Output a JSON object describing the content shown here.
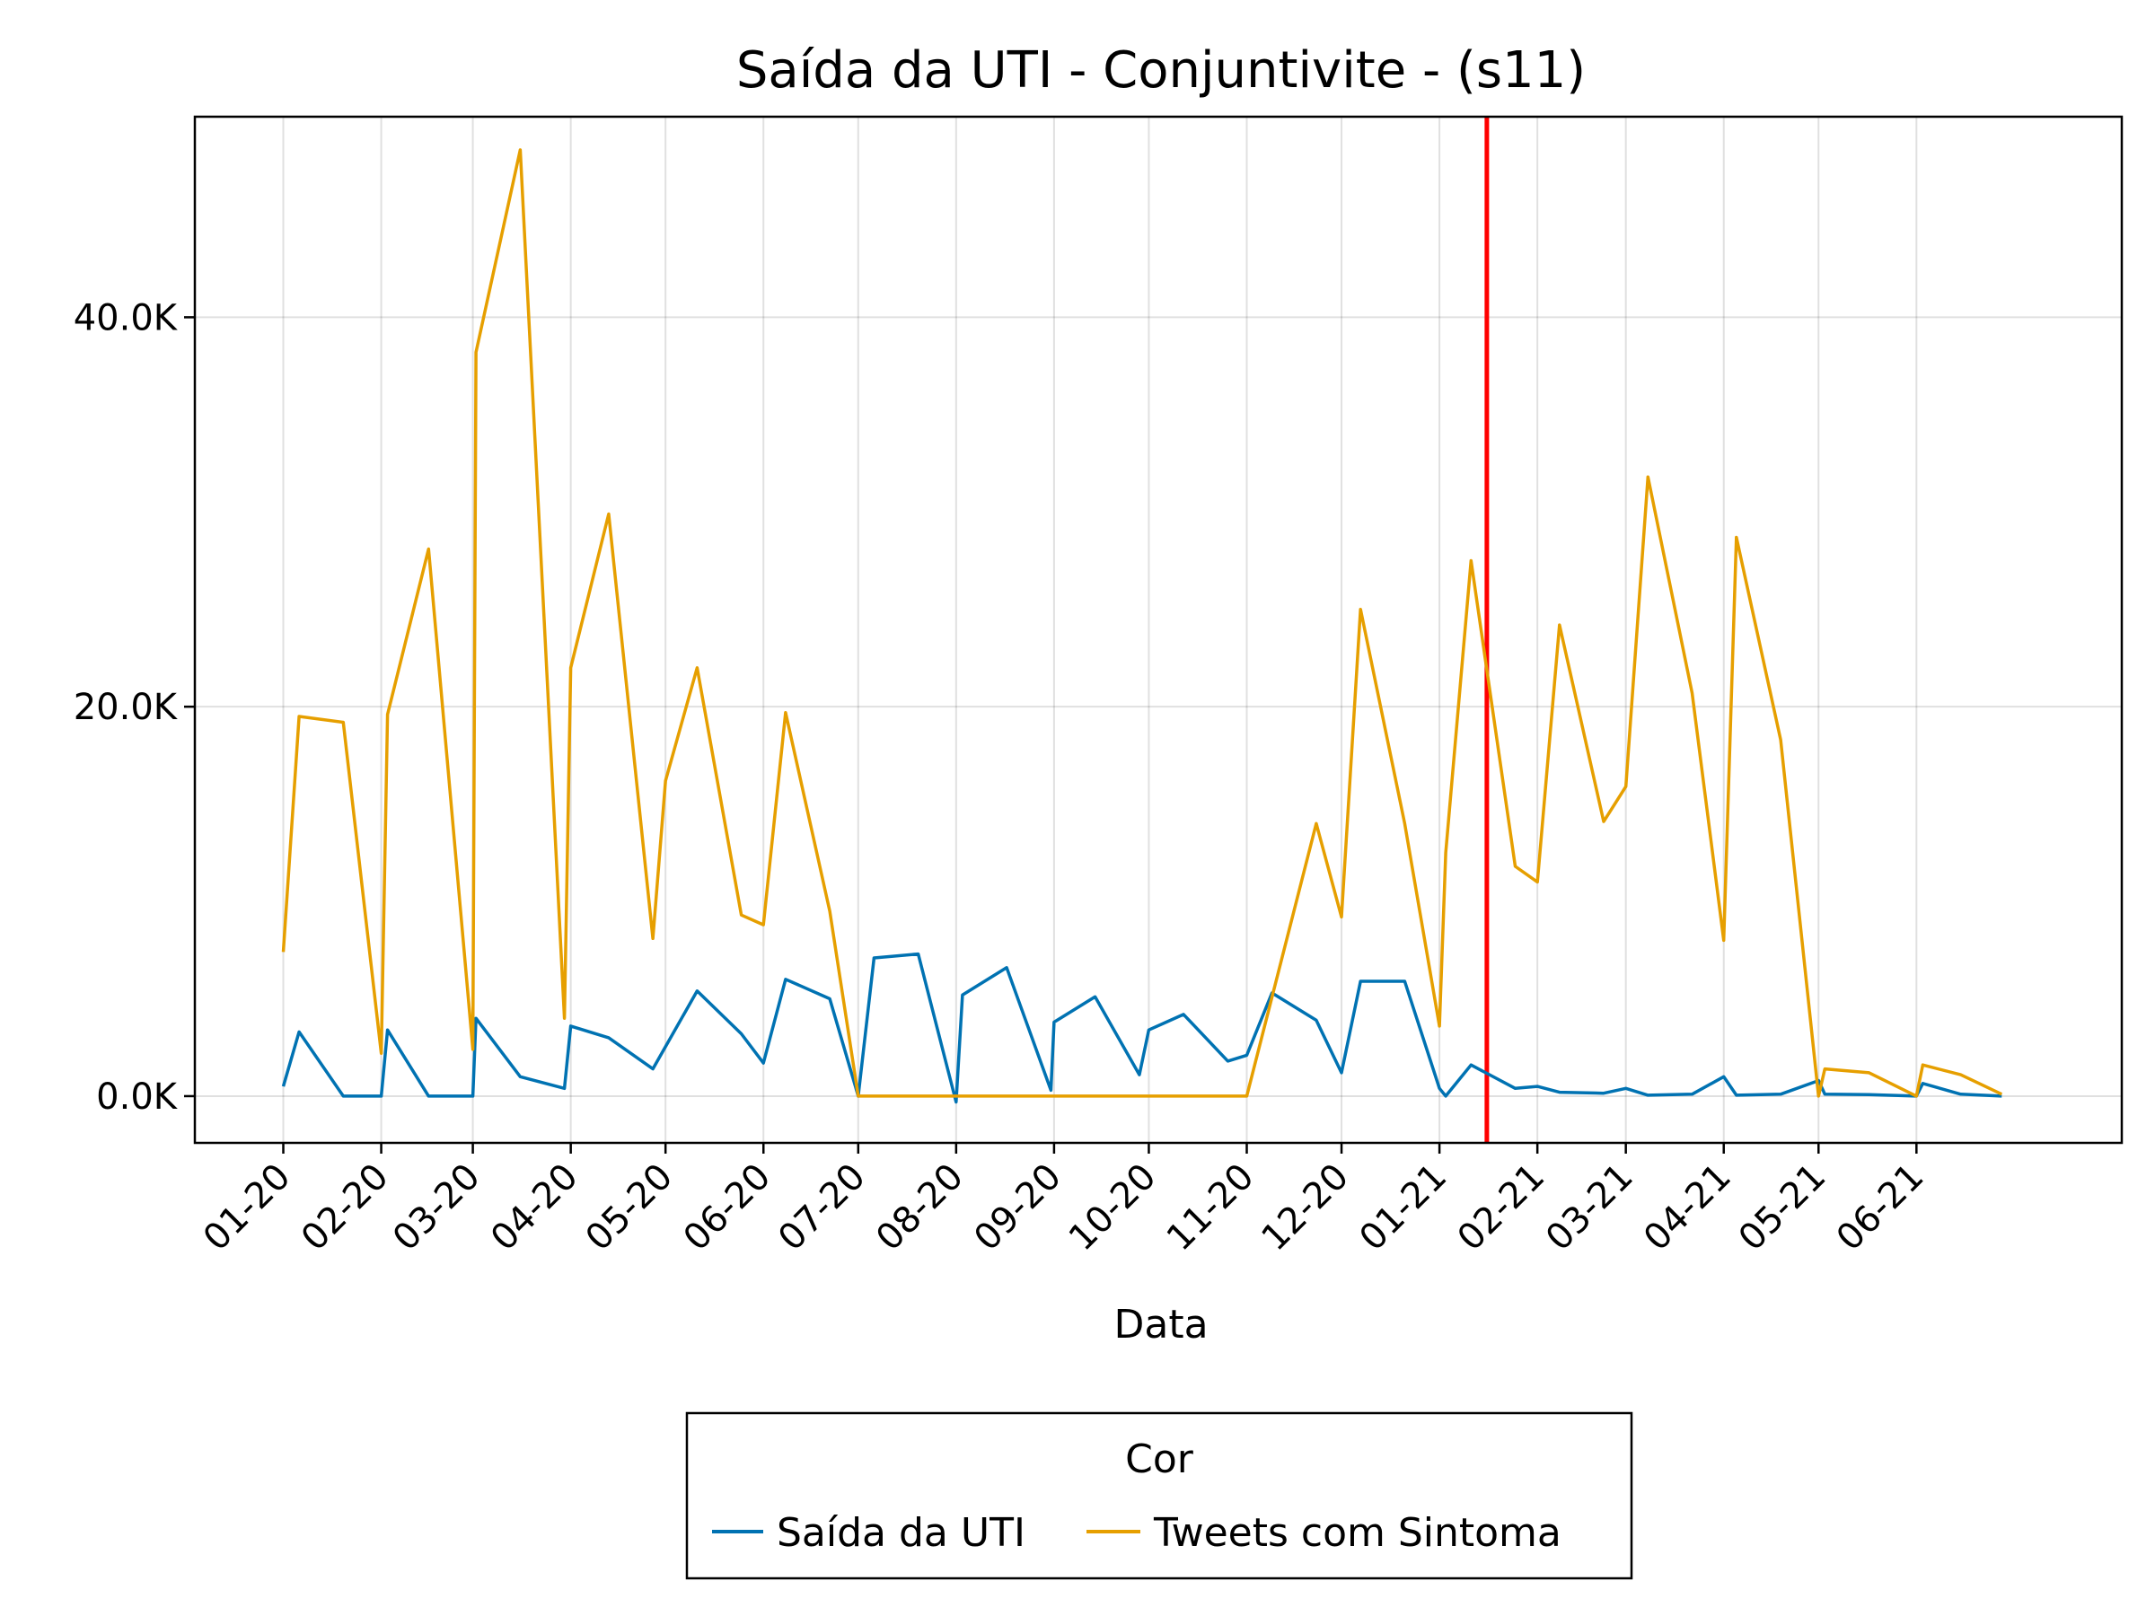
{
  "chart_data": {
    "type": "line",
    "title": "Saída da UTI - Conjuntivite - (s11)",
    "xlabel": "Data",
    "ylabel": "",
    "x_axis_kind": "date",
    "xlim": [
      "2019-12-04",
      "2021-08-05"
    ],
    "ylim": [
      -2400,
      50300
    ],
    "yticks": [
      {
        "value": 0,
        "label": "0.0K"
      },
      {
        "value": 20000,
        "label": "20.0K"
      },
      {
        "value": 40000,
        "label": "40.0K"
      }
    ],
    "xticks": [
      {
        "value": "2020-01-01",
        "label": "01-20"
      },
      {
        "value": "2020-02-01",
        "label": "02-20"
      },
      {
        "value": "2020-03-01",
        "label": "03-20"
      },
      {
        "value": "2020-04-01",
        "label": "04-20"
      },
      {
        "value": "2020-05-01",
        "label": "05-20"
      },
      {
        "value": "2020-06-01",
        "label": "06-20"
      },
      {
        "value": "2020-07-01",
        "label": "07-20"
      },
      {
        "value": "2020-08-01",
        "label": "08-20"
      },
      {
        "value": "2020-09-01",
        "label": "09-20"
      },
      {
        "value": "2020-10-01",
        "label": "10-20"
      },
      {
        "value": "2020-11-01",
        "label": "11-20"
      },
      {
        "value": "2020-12-01",
        "label": "12-20"
      },
      {
        "value": "2021-01-01",
        "label": "01-21"
      },
      {
        "value": "2021-02-01",
        "label": "02-21"
      },
      {
        "value": "2021-03-01",
        "label": "03-21"
      },
      {
        "value": "2021-04-01",
        "label": "04-21"
      },
      {
        "value": "2021-05-01",
        "label": "05-21"
      },
      {
        "value": "2021-06-01",
        "label": "06-21"
      }
    ],
    "grid": true,
    "vline": {
      "x": "2021-01-16",
      "color": "#ff0000"
    },
    "legend": {
      "title": "Cor",
      "placement": "bottom"
    },
    "series": [
      {
        "name": "Saída da UTI",
        "color": "#0072b2",
        "points": [
          [
            "2020-01-01",
            500
          ],
          [
            "2020-01-06",
            3300
          ],
          [
            "2020-01-20",
            0
          ],
          [
            "2020-02-01",
            0
          ],
          [
            "2020-02-03",
            3400
          ],
          [
            "2020-02-16",
            0
          ],
          [
            "2020-03-01",
            0
          ],
          [
            "2020-03-02",
            4000
          ],
          [
            "2020-03-16",
            1000
          ],
          [
            "2020-03-30",
            400
          ],
          [
            "2020-04-01",
            3600
          ],
          [
            "2020-04-13",
            3000
          ],
          [
            "2020-04-27",
            1400
          ],
          [
            "2020-05-11",
            5400
          ],
          [
            "2020-05-25",
            3200
          ],
          [
            "2020-06-01",
            1700
          ],
          [
            "2020-06-08",
            6000
          ],
          [
            "2020-06-22",
            5000
          ],
          [
            "2020-07-01",
            0
          ],
          [
            "2020-07-06",
            7100
          ],
          [
            "2020-07-20",
            7300
          ],
          [
            "2020-08-01",
            -300
          ],
          [
            "2020-08-03",
            5200
          ],
          [
            "2020-08-17",
            6600
          ],
          [
            "2020-08-31",
            300
          ],
          [
            "2020-09-01",
            3800
          ],
          [
            "2020-09-14",
            5100
          ],
          [
            "2020-09-28",
            1100
          ],
          [
            "2020-10-01",
            3400
          ],
          [
            "2020-10-12",
            4200
          ],
          [
            "2020-10-26",
            1800
          ],
          [
            "2020-11-01",
            2100
          ],
          [
            "2020-11-09",
            5300
          ],
          [
            "2020-11-23",
            3900
          ],
          [
            "2020-12-01",
            1200
          ],
          [
            "2020-12-07",
            5900
          ],
          [
            "2020-12-21",
            5900
          ],
          [
            "2021-01-01",
            400
          ],
          [
            "2021-01-03",
            0
          ],
          [
            "2021-01-11",
            1600
          ],
          [
            "2021-01-25",
            400
          ],
          [
            "2021-02-01",
            500
          ],
          [
            "2021-02-08",
            200
          ],
          [
            "2021-02-22",
            150
          ],
          [
            "2021-03-01",
            400
          ],
          [
            "2021-03-08",
            50
          ],
          [
            "2021-03-22",
            100
          ],
          [
            "2021-04-01",
            1000
          ],
          [
            "2021-04-05",
            50
          ],
          [
            "2021-04-19",
            100
          ],
          [
            "2021-05-01",
            800
          ],
          [
            "2021-05-03",
            100
          ],
          [
            "2021-05-17",
            80
          ],
          [
            "2021-06-01",
            0
          ],
          [
            "2021-06-03",
            650
          ],
          [
            "2021-06-15",
            100
          ],
          [
            "2021-06-28",
            0
          ]
        ]
      },
      {
        "name": "Tweets com Sintoma",
        "color": "#e69f00",
        "points": [
          [
            "2020-01-01",
            7400
          ],
          [
            "2020-01-06",
            19500
          ],
          [
            "2020-01-20",
            19200
          ],
          [
            "2020-02-01",
            2200
          ],
          [
            "2020-02-03",
            19600
          ],
          [
            "2020-02-16",
            28100
          ],
          [
            "2020-03-01",
            2400
          ],
          [
            "2020-03-02",
            38200
          ],
          [
            "2020-03-16",
            48600
          ],
          [
            "2020-03-30",
            4000
          ],
          [
            "2020-04-01",
            22000
          ],
          [
            "2020-04-13",
            29900
          ],
          [
            "2020-04-27",
            8100
          ],
          [
            "2020-05-01",
            16200
          ],
          [
            "2020-05-11",
            22000
          ],
          [
            "2020-05-25",
            9300
          ],
          [
            "2020-06-01",
            8800
          ],
          [
            "2020-06-08",
            19700
          ],
          [
            "2020-06-22",
            9500
          ],
          [
            "2020-07-01",
            0
          ],
          [
            "2020-11-01",
            0
          ],
          [
            "2020-11-23",
            14000
          ],
          [
            "2020-12-01",
            9200
          ],
          [
            "2020-12-07",
            25000
          ],
          [
            "2020-12-21",
            14000
          ],
          [
            "2021-01-01",
            3600
          ],
          [
            "2021-01-03",
            12500
          ],
          [
            "2021-01-11",
            27500
          ],
          [
            "2021-01-25",
            11800
          ],
          [
            "2021-02-01",
            11000
          ],
          [
            "2021-02-08",
            24200
          ],
          [
            "2021-02-22",
            14100
          ],
          [
            "2021-03-01",
            15900
          ],
          [
            "2021-03-08",
            31800
          ],
          [
            "2021-03-22",
            20700
          ],
          [
            "2021-04-01",
            8000
          ],
          [
            "2021-04-05",
            28700
          ],
          [
            "2021-04-19",
            18300
          ],
          [
            "2021-05-01",
            0
          ],
          [
            "2021-05-03",
            1400
          ],
          [
            "2021-05-17",
            1200
          ],
          [
            "2021-06-01",
            0
          ],
          [
            "2021-06-03",
            1600
          ],
          [
            "2021-06-15",
            1100
          ],
          [
            "2021-06-28",
            100
          ]
        ]
      }
    ]
  }
}
